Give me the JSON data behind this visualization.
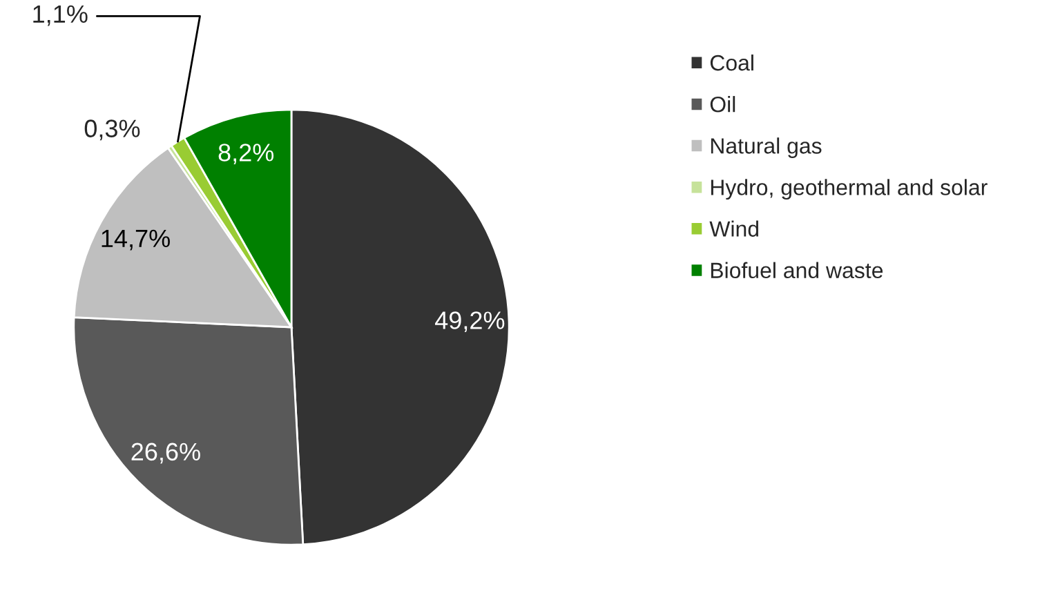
{
  "chart_data": {
    "type": "pie",
    "categories": [
      "Coal",
      "Oil",
      "Natural gas",
      "Hydro, geothermal and solar",
      "Wind",
      "Biofuel and waste"
    ],
    "values": [
      49.2,
      26.6,
      14.7,
      0.3,
      1.1,
      8.2
    ],
    "value_labels": [
      "49,2%",
      "26,6%",
      "14,7%",
      "0,3%",
      "1,1%",
      "8,2%"
    ],
    "colors": [
      "#333333",
      "#595959",
      "#bfbfbf",
      "#c6e29a",
      "#99cc33",
      "#008000"
    ],
    "legend": "right"
  }
}
